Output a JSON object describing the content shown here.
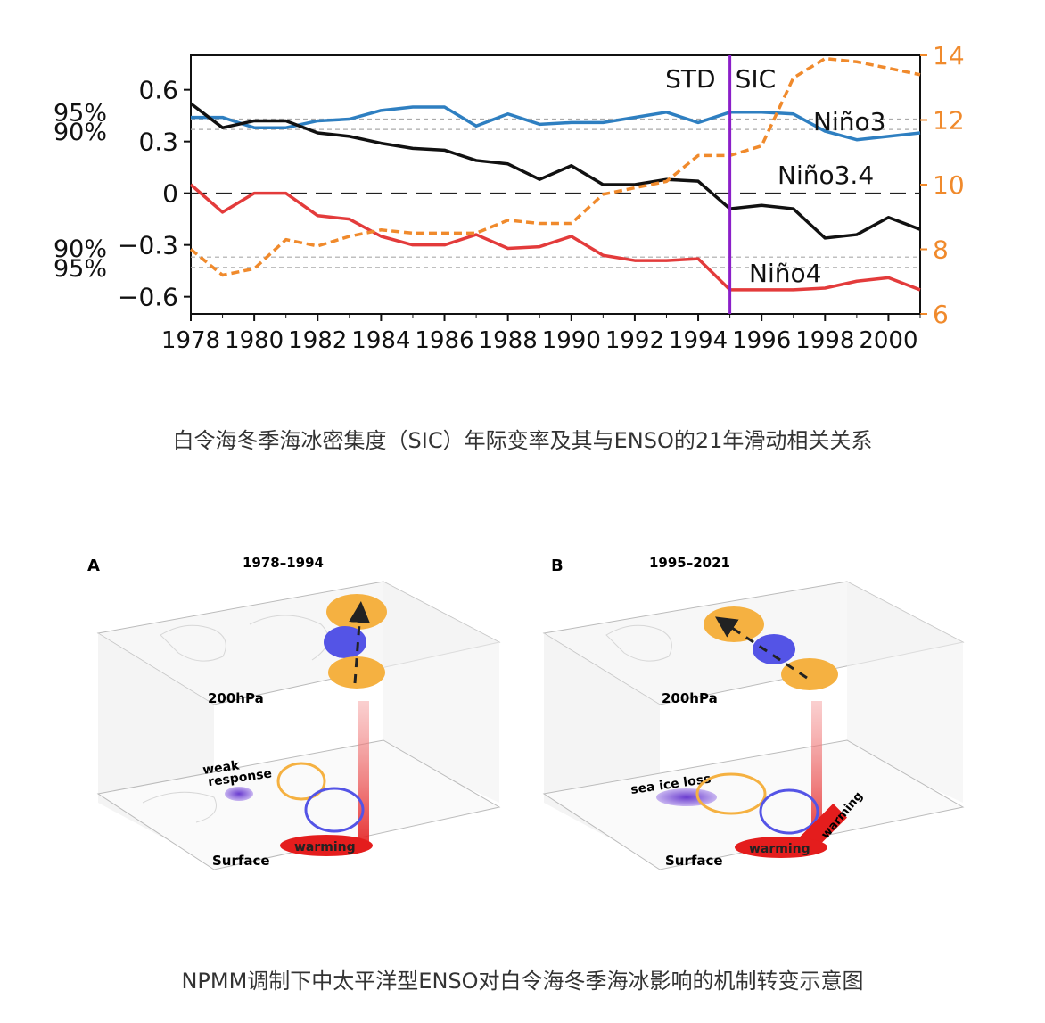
{
  "chart_data": {
    "type": "line",
    "title": "",
    "x": [
      1978,
      1979,
      1980,
      1981,
      1982,
      1983,
      1984,
      1985,
      1986,
      1987,
      1988,
      1989,
      1990,
      1991,
      1992,
      1993,
      1994,
      1995,
      1996,
      1997,
      1998,
      1999,
      2000,
      2001
    ],
    "xticks": [
      "1978",
      "1980",
      "1982",
      "1984",
      "1986",
      "1988",
      "1990",
      "1992",
      "1994",
      "1996",
      "1998",
      "2000"
    ],
    "xlim": [
      1978,
      2001
    ],
    "ylim_left": [
      -0.7,
      0.8
    ],
    "ylim_right": [
      6,
      14
    ],
    "yticks_left": [
      "0.6",
      "0.3",
      "0",
      "−0.3",
      "−0.6"
    ],
    "yticks_left_values": [
      0.6,
      0.3,
      0,
      -0.3,
      -0.6
    ],
    "yticks_right": [
      "14",
      "12",
      "10",
      "8",
      "6"
    ],
    "yticks_right_values": [
      14,
      12,
      10,
      8,
      6
    ],
    "significance": [
      {
        "label": "95%",
        "value": 0.43
      },
      {
        "label": "90%",
        "value": 0.37
      },
      {
        "label": "90%",
        "value": -0.37
      },
      {
        "label": "95%",
        "value": -0.43
      }
    ],
    "split_year": 1995,
    "split_labels": {
      "left": "STD",
      "right": "SIC"
    },
    "series": [
      {
        "name": "Niño3",
        "color": "#2e7fc1",
        "axis": "left",
        "values": [
          0.44,
          0.44,
          0.38,
          0.38,
          0.42,
          0.43,
          0.48,
          0.5,
          0.5,
          0.39,
          0.46,
          0.4,
          0.41,
          0.41,
          0.44,
          0.47,
          0.41,
          0.47,
          0.47,
          0.46,
          0.36,
          0.31,
          0.33,
          0.35
        ]
      },
      {
        "name": "Niño3.4",
        "color": "#111111",
        "axis": "left",
        "values": [
          0.52,
          0.38,
          0.42,
          0.42,
          0.35,
          0.33,
          0.29,
          0.26,
          0.25,
          0.19,
          0.17,
          0.08,
          0.16,
          0.05,
          0.05,
          0.08,
          0.07,
          -0.09,
          -0.07,
          -0.09,
          -0.26,
          -0.24,
          -0.14,
          -0.21
        ]
      },
      {
        "name": "Niño4",
        "color": "#e33b3b",
        "axis": "left",
        "values": [
          0.05,
          -0.11,
          0.0,
          0.0,
          -0.13,
          -0.15,
          -0.25,
          -0.3,
          -0.3,
          -0.24,
          -0.32,
          -0.31,
          -0.25,
          -0.36,
          -0.39,
          -0.39,
          -0.38,
          -0.56,
          -0.56,
          -0.56,
          -0.55,
          -0.51,
          -0.49,
          -0.56
        ]
      },
      {
        "name": "SIC",
        "color": "#f08a2c",
        "axis": "right",
        "dashed": true,
        "values": [
          8.0,
          7.2,
          7.4,
          8.3,
          8.1,
          8.4,
          8.6,
          8.5,
          8.5,
          8.5,
          8.9,
          8.8,
          8.8,
          9.7,
          9.9,
          10.1,
          10.9,
          10.9,
          11.2,
          13.3,
          13.9,
          13.8,
          13.6,
          13.4
        ]
      }
    ]
  },
  "captions": {
    "chart": "白令海冬季海冰密集度（SIC）年际变率及其与ENSO的21年滑动相关关系",
    "figure": "NPMM调制下中太平洋型ENSO对白令海冬季海冰影响的机制转变示意图"
  },
  "panels": [
    {
      "letter": "A",
      "period": "1978–1994",
      "upper_label": "200hPa",
      "surface_label": "Surface",
      "ice_label": "weak\nresponse",
      "warm_label": "warming",
      "extra_label": ""
    },
    {
      "letter": "B",
      "period": "1995–2021",
      "upper_label": "200hPa",
      "surface_label": "Surface",
      "ice_label": "sea ice loss",
      "warm_label": "warming",
      "extra_label": "warming"
    }
  ],
  "colors": {
    "warm": "#f5b141",
    "cold": "#5454e6",
    "red": "#e41d1d",
    "ice": "#8a5cd6"
  }
}
